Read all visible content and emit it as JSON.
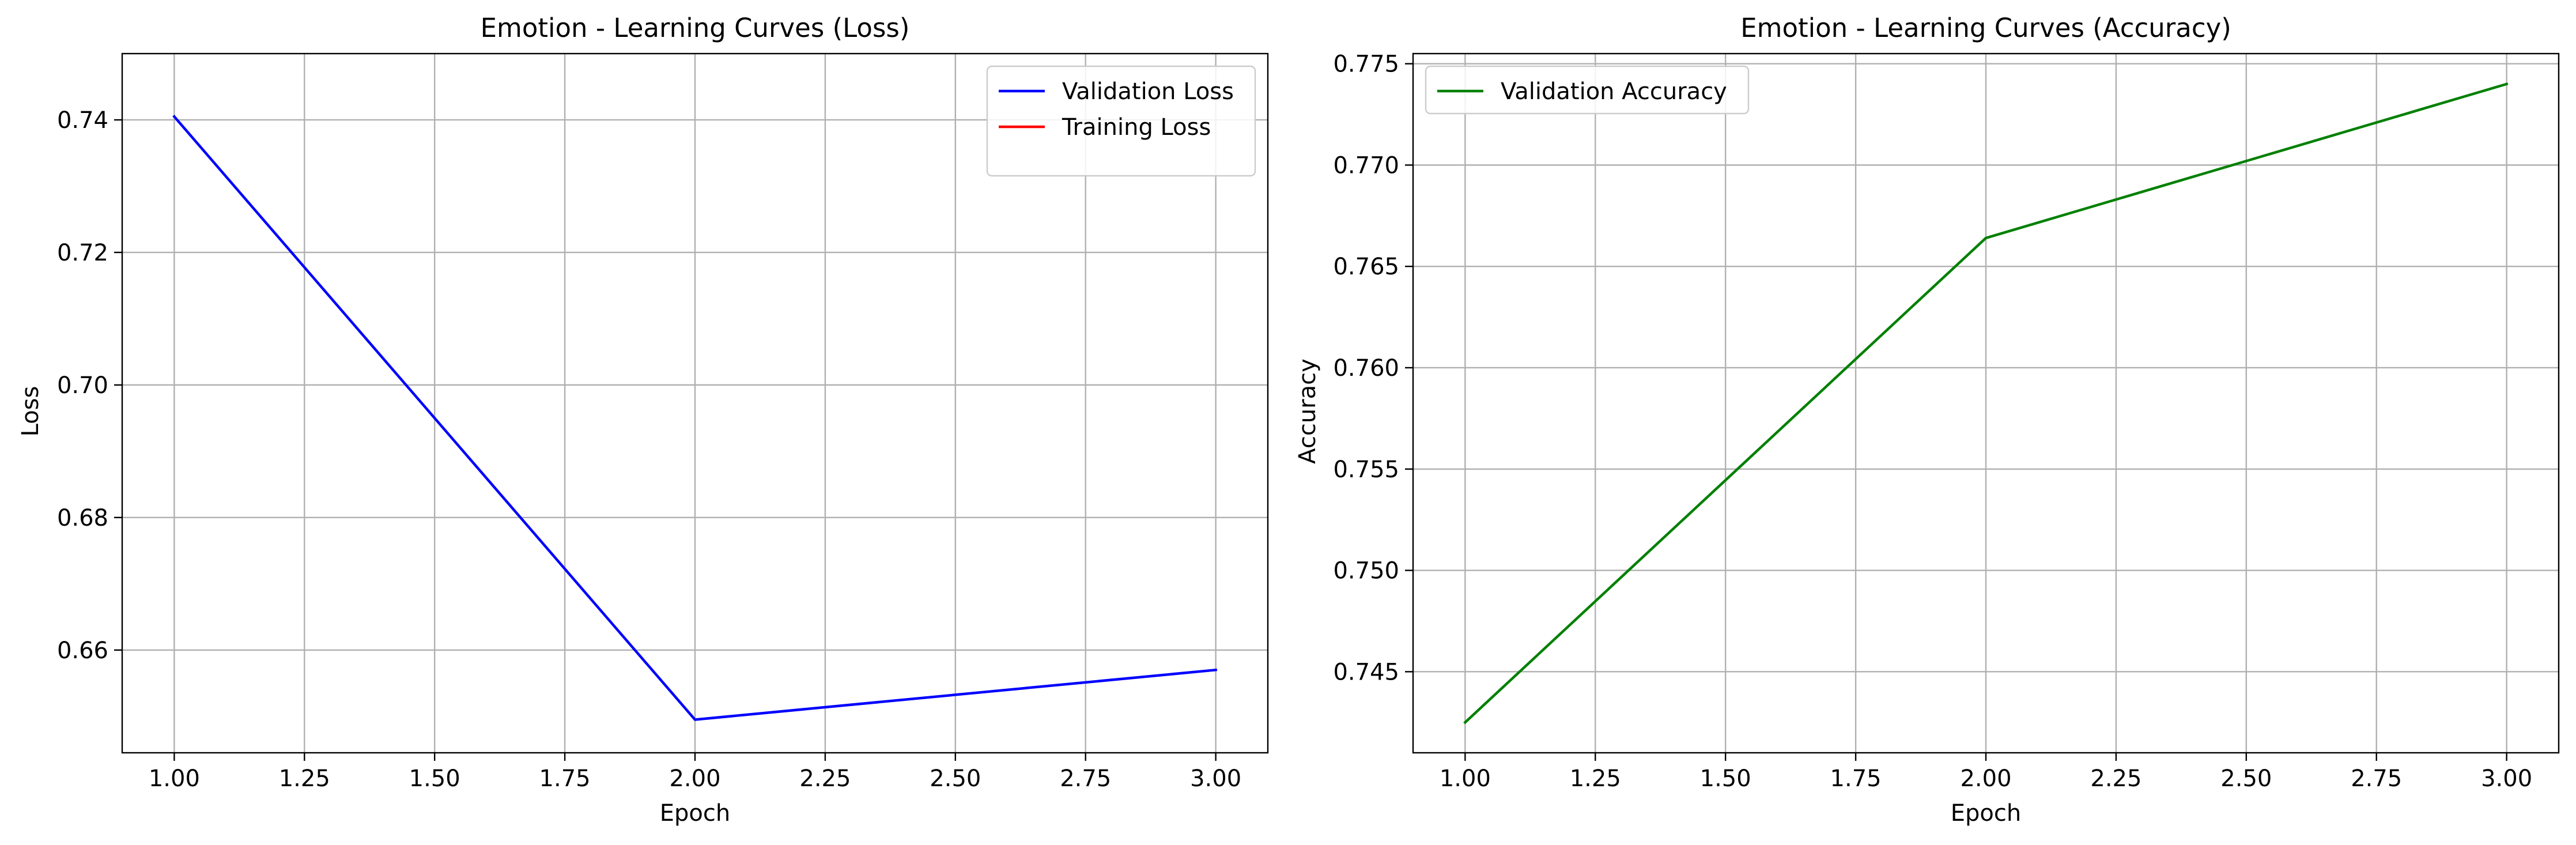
{
  "chart_data": [
    {
      "type": "line",
      "title": "Emotion - Learning Curves (Loss)",
      "xlabel": "Epoch",
      "ylabel": "Loss",
      "xlim": [
        0.9,
        3.1
      ],
      "ylim": [
        0.6445,
        0.75
      ],
      "xticks": [
        1.0,
        1.25,
        1.5,
        1.75,
        2.0,
        2.25,
        2.5,
        2.75,
        3.0
      ],
      "xtick_labels": [
        "1.00",
        "1.25",
        "1.50",
        "1.75",
        "2.00",
        "2.25",
        "2.50",
        "2.75",
        "3.00"
      ],
      "yticks": [
        0.66,
        0.68,
        0.7,
        0.72,
        0.74
      ],
      "ytick_labels": [
        "0.66",
        "0.68",
        "0.70",
        "0.72",
        "0.74"
      ],
      "grid": true,
      "legend_position": "top-right",
      "series": [
        {
          "name": "Validation Loss",
          "color": "#0000ff",
          "x": [
            1,
            2,
            3
          ],
          "values": [
            0.7405,
            0.6495,
            0.657
          ]
        },
        {
          "name": "Training Loss",
          "color": "#ff0000",
          "x": [],
          "values": []
        }
      ]
    },
    {
      "type": "line",
      "title": "Emotion - Learning Curves (Accuracy)",
      "xlabel": "Epoch",
      "ylabel": "Accuracy",
      "xlim": [
        0.9,
        3.1
      ],
      "ylim": [
        0.741,
        0.7755
      ],
      "xticks": [
        1.0,
        1.25,
        1.5,
        1.75,
        2.0,
        2.25,
        2.5,
        2.75,
        3.0
      ],
      "xtick_labels": [
        "1.00",
        "1.25",
        "1.50",
        "1.75",
        "2.00",
        "2.25",
        "2.50",
        "2.75",
        "3.00"
      ],
      "yticks": [
        0.745,
        0.75,
        0.755,
        0.76,
        0.765,
        0.77,
        0.775
      ],
      "ytick_labels": [
        "0.745",
        "0.750",
        "0.755",
        "0.760",
        "0.765",
        "0.770",
        "0.775"
      ],
      "grid": true,
      "legend_position": "top-left",
      "series": [
        {
          "name": "Validation Accuracy",
          "color": "#008000",
          "x": [
            1,
            2,
            3
          ],
          "values": [
            0.7425,
            0.7664,
            0.774
          ]
        }
      ]
    }
  ]
}
